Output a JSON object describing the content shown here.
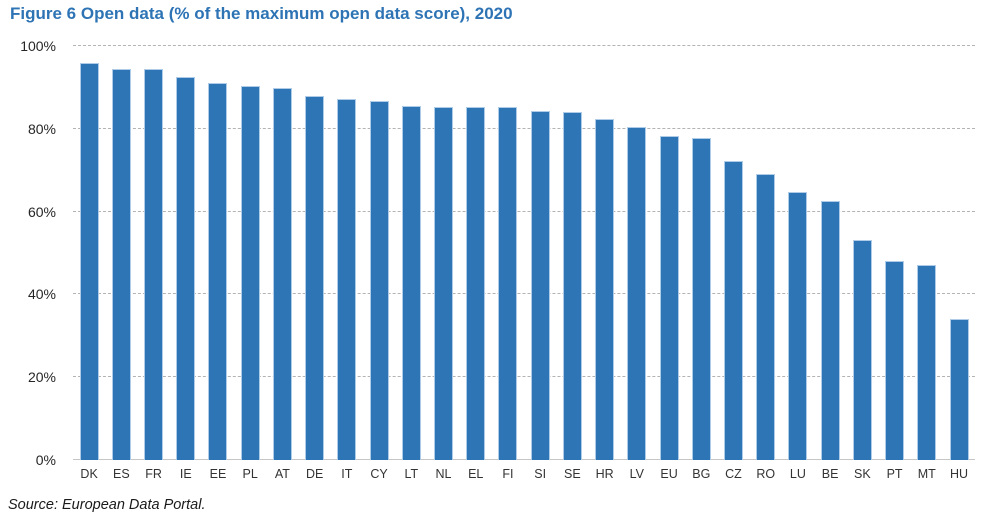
{
  "figure": {
    "title": "Figure 6 Open data (% of the maximum open data score), 2020",
    "source": "Source: European Data Portal."
  },
  "colors": {
    "title_text": "#2E74B5",
    "bar_fill": "#2E75B6",
    "bar_border": "#AECBE8",
    "gridline": "#B3B3B3",
    "axis_line": "#C6C6C6",
    "tick_text": "#262626",
    "category_text": "#333333"
  },
  "chart_data": {
    "type": "bar",
    "title": "Figure 6 Open data (% of the maximum open data score), 2020",
    "categories": [
      "DK",
      "ES",
      "FR",
      "IE",
      "EE",
      "PL",
      "AT",
      "DE",
      "IT",
      "CY",
      "LT",
      "NL",
      "EL",
      "FI",
      "SI",
      "SE",
      "HR",
      "LV",
      "EU",
      "BG",
      "CZ",
      "RO",
      "LU",
      "BE",
      "SK",
      "PT",
      "MT",
      "HU"
    ],
    "values": [
      96.0,
      94.5,
      94.5,
      92.6,
      91.1,
      90.3,
      89.8,
      88.0,
      87.1,
      86.7,
      85.6,
      85.3,
      85.2,
      85.2,
      84.3,
      84.1,
      82.4,
      80.5,
      78.2,
      77.7,
      72.3,
      69.2,
      64.8,
      62.6,
      53.2,
      48.0,
      47.0,
      34.0
    ],
    "xlabel": "",
    "ylabel": "",
    "ylim": [
      0,
      100
    ],
    "yticks": [
      0,
      20,
      40,
      60,
      80,
      100
    ],
    "ytick_labels": [
      "0%",
      "20%",
      "40%",
      "60%",
      "80%",
      "100%"
    ],
    "grid": "horizontal-dotted",
    "legend": "none",
    "source": "Source: European Data Portal."
  }
}
